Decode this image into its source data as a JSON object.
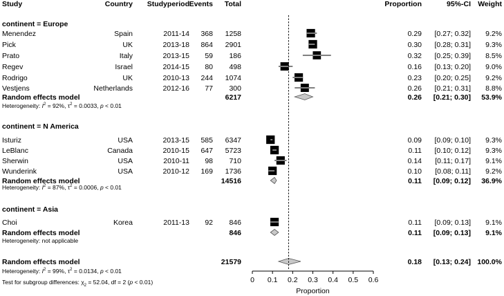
{
  "chart_data": {
    "type": "forest",
    "x_axis": {
      "label": "Proportion",
      "ticks": [
        0,
        0.1,
        0.2,
        0.3,
        0.4,
        0.5,
        0.6
      ],
      "tick_labels": [
        "0",
        "0.1",
        "0.2",
        "0.3",
        "0.4",
        "0.5",
        "0.6"
      ],
      "range": [
        0,
        0.6
      ],
      "reference_line": 0.18
    },
    "columns": {
      "study": "Study",
      "country": "Country",
      "studyperiod": "Studyperiod",
      "events": "Events",
      "total": "Total",
      "proportion": "Proportion",
      "ci": "95%-CI",
      "weight": "Weight"
    },
    "groups": [
      {
        "header": "continent = Europe",
        "studies": [
          {
            "study": "Menendez",
            "country": "Spain",
            "period": "2011-14",
            "events": "368",
            "total": "1258",
            "p": 0.29,
            "lo": 0.27,
            "hi": 0.32,
            "prop": "0.29",
            "ci": "[0.27; 0.32]",
            "weight": "9.2%",
            "w": 9.2
          },
          {
            "study": "Pick",
            "country": "UK",
            "period": "2013-18",
            "events": "864",
            "total": "2901",
            "p": 0.3,
            "lo": 0.28,
            "hi": 0.31,
            "prop": "0.30",
            "ci": "[0.28; 0.31]",
            "weight": "9.3%",
            "w": 9.3
          },
          {
            "study": "Prato",
            "country": "Italy",
            "period": "2013-15",
            "events": "59",
            "total": "186",
            "p": 0.32,
            "lo": 0.25,
            "hi": 0.39,
            "prop": "0.32",
            "ci": "[0.25; 0.39]",
            "weight": "8.5%",
            "w": 8.5
          },
          {
            "study": "Regev",
            "country": "Israel",
            "period": "2014-15",
            "events": "80",
            "total": "498",
            "p": 0.16,
            "lo": 0.13,
            "hi": 0.2,
            "prop": "0.16",
            "ci": "[0.13; 0.20]",
            "weight": "9.0%",
            "w": 9.0
          },
          {
            "study": "Rodrigo",
            "country": "UK",
            "period": "2010-13",
            "events": "244",
            "total": "1074",
            "p": 0.23,
            "lo": 0.2,
            "hi": 0.25,
            "prop": "0.23",
            "ci": "[0.20; 0.25]",
            "weight": "9.2%",
            "w": 9.2
          },
          {
            "study": "Vestjens",
            "country": "Netherlands",
            "period": "2012-16",
            "events": "77",
            "total": "300",
            "p": 0.26,
            "lo": 0.21,
            "hi": 0.31,
            "prop": "0.26",
            "ci": "[0.21; 0.31]",
            "weight": "8.8%",
            "w": 8.8
          }
        ],
        "pooled": {
          "label": "Random effects model",
          "total": "6217",
          "p": 0.26,
          "lo": 0.21,
          "hi": 0.3,
          "prop": "0.26",
          "ci": "[0.21; 0.30]",
          "weight": "53.9%"
        },
        "heterogeneity": {
          "prefix": "Heterogeneity: ",
          "i2": "92%",
          "tau2": "0.0033",
          "pval": "0.01"
        }
      },
      {
        "header": "continent = N America",
        "studies": [
          {
            "study": "Isturiz",
            "country": "USA",
            "period": "2013-15",
            "events": "585",
            "total": "6347",
            "p": 0.09,
            "lo": 0.09,
            "hi": 0.1,
            "prop": "0.09",
            "ci": "[0.09; 0.10]",
            "weight": "9.3%",
            "w": 9.3
          },
          {
            "study": "LeBlanc",
            "country": "Canada",
            "period": "2010-15",
            "events": "647",
            "total": "5723",
            "p": 0.11,
            "lo": 0.1,
            "hi": 0.12,
            "prop": "0.11",
            "ci": "[0.10; 0.12]",
            "weight": "9.3%",
            "w": 9.3
          },
          {
            "study": "Sherwin",
            "country": "USA",
            "period": "2010-11",
            "events": "98",
            "total": "710",
            "p": 0.14,
            "lo": 0.11,
            "hi": 0.17,
            "prop": "0.14",
            "ci": "[0.11; 0.17]",
            "weight": "9.1%",
            "w": 9.1
          },
          {
            "study": "Wunderink",
            "country": "USA",
            "period": "2010-12",
            "events": "169",
            "total": "1736",
            "p": 0.1,
            "lo": 0.08,
            "hi": 0.11,
            "prop": "0.10",
            "ci": "[0.08; 0.11]",
            "weight": "9.2%",
            "w": 9.2
          }
        ],
        "pooled": {
          "label": "Random effects model",
          "total": "14516",
          "p": 0.11,
          "lo": 0.09,
          "hi": 0.12,
          "prop": "0.11",
          "ci": "[0.09; 0.12]",
          "weight": "36.9%"
        },
        "heterogeneity": {
          "prefix": "Heterogeneity: ",
          "i2": "87%",
          "tau2": "0.0006",
          "pval": "0.01"
        }
      },
      {
        "header": "continent = Asia",
        "studies": [
          {
            "study": "Choi",
            "country": "Korea",
            "period": "2011-13",
            "events": "92",
            "total": "846",
            "p": 0.11,
            "lo": 0.09,
            "hi": 0.13,
            "prop": "0.11",
            "ci": "[0.09; 0.13]",
            "weight": "9.1%",
            "w": 9.1
          }
        ],
        "pooled": {
          "label": "Random effects model",
          "total": "846",
          "p": 0.11,
          "lo": 0.09,
          "hi": 0.13,
          "prop": "0.11",
          "ci": "[0.09; 0.13]",
          "weight": "9.1%"
        },
        "heterogeneity": {
          "text": "Heterogeneity: not applicable"
        }
      }
    ],
    "overall": {
      "label": "Random effects model",
      "total": "21579",
      "p": 0.18,
      "lo": 0.13,
      "hi": 0.24,
      "prop": "0.18",
      "ci": "[0.13; 0.24]",
      "weight": "100.0%",
      "heterogeneity": {
        "prefix": "Heterogeneity: ",
        "i2": "99%",
        "tau2": "0.0134",
        "pval": "0.01"
      },
      "subgroup_test": {
        "prefix": "Test for subgroup differences: ",
        "chi_df": "2",
        "chi_val": "52.04",
        "df_text": ", df = 2 (",
        "pval": "0.01",
        "suffix": ")"
      }
    }
  }
}
